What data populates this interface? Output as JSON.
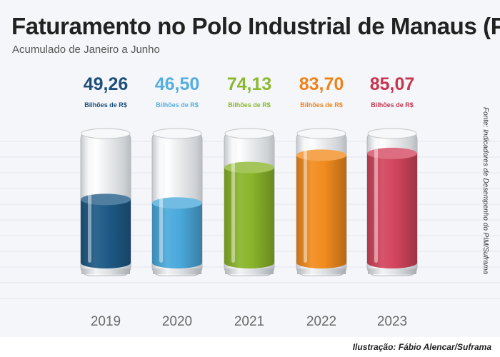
{
  "header": {
    "title": "Faturamento no Polo Industrial de Manaus (PIM)",
    "subtitle": "Acumulado de Janeiro a Junho"
  },
  "source_note": "Fonte: Indicadores de Desempenho do PIM/Suframa",
  "credit": "Ilustração: Fábio Alencar/Suframa",
  "chart_data": {
    "type": "bar",
    "title": "Faturamento no Polo Industrial de Manaus (PIM)",
    "subtitle": "Acumulado de Janeiro a Junho",
    "categories": [
      "2019",
      "2020",
      "2021",
      "2022",
      "2023"
    ],
    "values": [
      49.26,
      46.5,
      74.13,
      83.7,
      85.07
    ],
    "value_labels": [
      "49,26",
      "46,50",
      "74,13",
      "83,70",
      "85,07"
    ],
    "unit": "Bilhões de R$",
    "colors": [
      "#1e5a86",
      "#4aa9dc",
      "#8ab52a",
      "#f28c1e",
      "#d3455d"
    ],
    "label_colors": [
      "#1d4f7a",
      "#55aee0",
      "#8bb82f",
      "#f0821a",
      "#c8354f"
    ],
    "ylim": [
      0,
      100
    ],
    "grid": false,
    "legend": "none"
  }
}
